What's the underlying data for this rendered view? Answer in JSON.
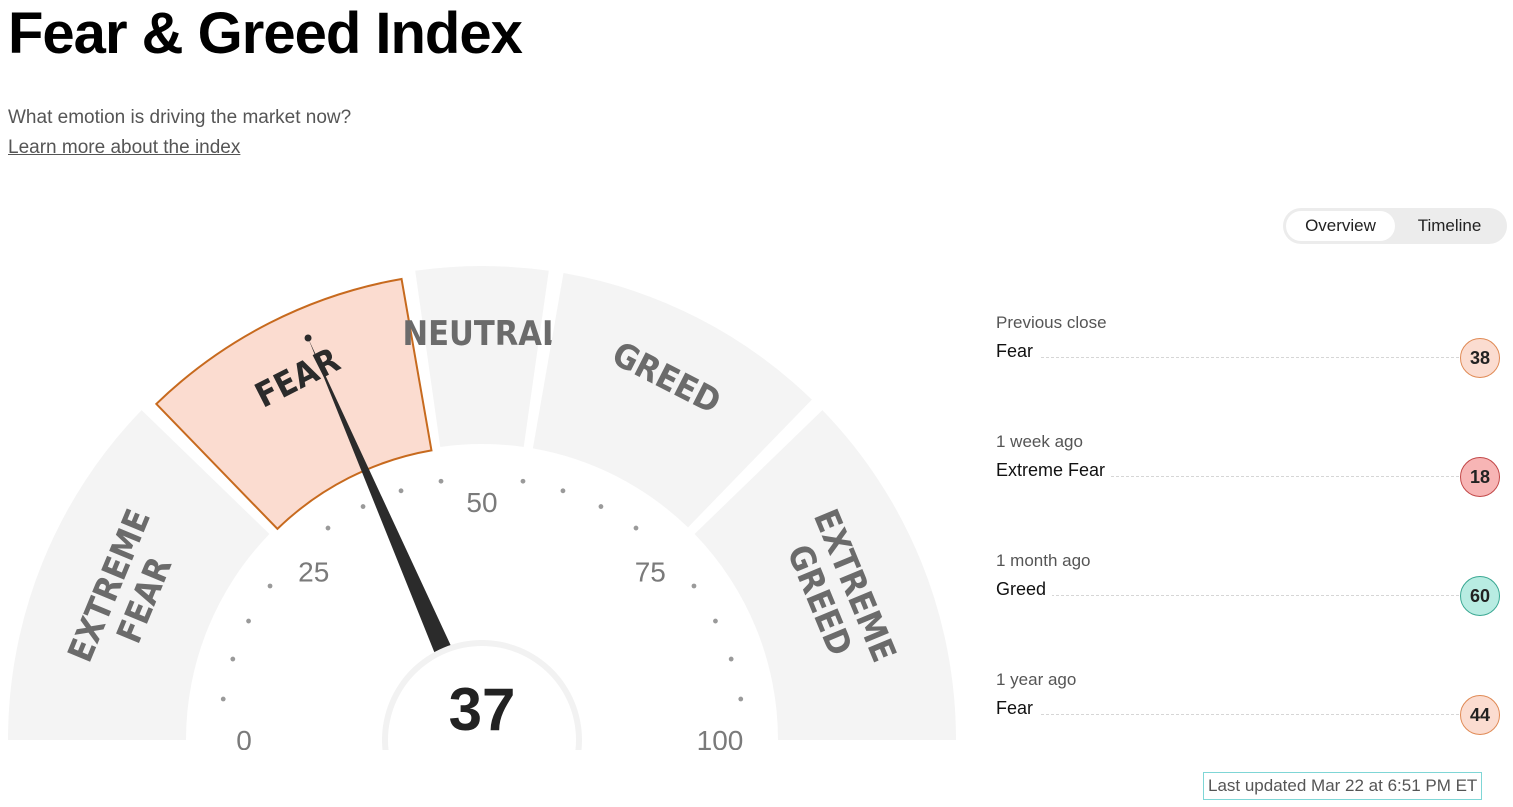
{
  "page": {
    "title": "Fear & Greed Index",
    "subtitle": "What emotion is driving the market now?",
    "learn_link": "Learn more about the index"
  },
  "view_toggle": {
    "options": [
      "Overview",
      "Timeline"
    ],
    "selected": "Overview"
  },
  "gauge": {
    "value": 37,
    "range": [
      0,
      100
    ],
    "ticks": [
      "0",
      "25",
      "50",
      "75",
      "100"
    ],
    "segments": [
      {
        "label_lines": [
          "EXTREME",
          "FEAR"
        ],
        "range": [
          0,
          25
        ],
        "active": false
      },
      {
        "label_lines": [
          "FEAR"
        ],
        "range": [
          25,
          45
        ],
        "active": true
      },
      {
        "label_lines": [
          "NEUTRAL"
        ],
        "range": [
          45,
          55
        ],
        "active": false
      },
      {
        "label_lines": [
          "GREED"
        ],
        "range": [
          55,
          75
        ],
        "active": false
      },
      {
        "label_lines": [
          "EXTREME",
          "GREED"
        ],
        "range": [
          75,
          100
        ],
        "active": false
      }
    ],
    "colors": {
      "segment_bg": "#f4f4f4",
      "active_fill": "#fbdcd0",
      "active_stroke": "#c76a1e",
      "label": "#6b6b6b",
      "active_label": "#2b2b2b",
      "needle": "#2b2b2b",
      "dot": "#9a9a9a",
      "tick_text": "#7a7a7a"
    }
  },
  "history": [
    {
      "label": "Previous close",
      "value_label": "Fear",
      "score": "38",
      "fill": "#fbdcd0",
      "border": "#e08a55"
    },
    {
      "label": "1 week ago",
      "value_label": "Extreme Fear",
      "score": "18",
      "fill": "#f7b5b5",
      "border": "#c24848"
    },
    {
      "label": "1 month ago",
      "value_label": "Greed",
      "score": "60",
      "fill": "#b8ece2",
      "border": "#3aa893"
    },
    {
      "label": "1 year ago",
      "value_label": "Fear",
      "score": "44",
      "fill": "#fbdcd0",
      "border": "#e08a55"
    }
  ],
  "updated": "Last updated Mar 22 at 6:51 PM ET"
}
